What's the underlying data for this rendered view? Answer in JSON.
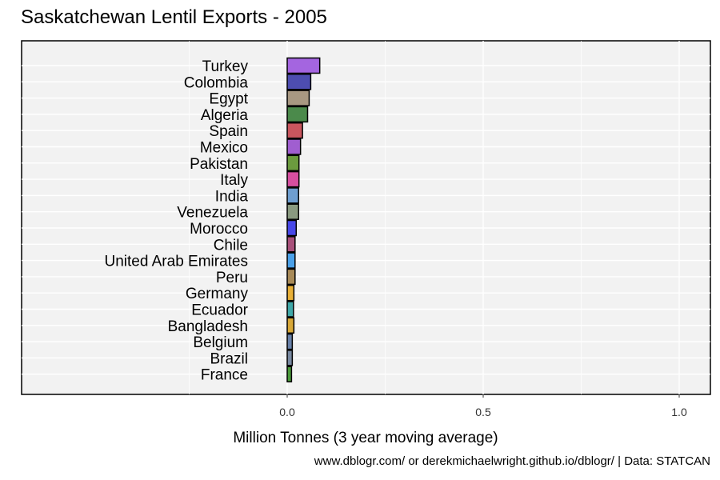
{
  "title": "Saskatchewan Lentil Exports - 2005",
  "caption": "www.dblogr.com/ or derekmichaelwright.github.io/dblogr/ | Data: STATCAN",
  "chart_data": {
    "type": "bar",
    "orientation": "horizontal",
    "title": "Saskatchewan Lentil Exports - 2005",
    "xlabel": "Million Tonnes (3 year moving average)",
    "ylabel": "",
    "xlim": [
      -0.5,
      1.08
    ],
    "xticks": [
      0.0,
      0.5,
      1.0
    ],
    "xtick_labels": [
      "0.0",
      "0.5",
      "1.0"
    ],
    "grid": true,
    "categories": [
      "Turkey",
      "Colombia",
      "Egypt",
      "Algeria",
      "Spain",
      "Mexico",
      "Pakistan",
      "Italy",
      "India",
      "Venezuela",
      "Morocco",
      "Chile",
      "United Arab Emirates",
      "Peru",
      "Germany",
      "Ecuador",
      "Bangladesh",
      "Belgium",
      "Brazil",
      "France"
    ],
    "values": [
      0.083,
      0.06,
      0.056,
      0.052,
      0.039,
      0.034,
      0.03,
      0.03,
      0.029,
      0.029,
      0.023,
      0.02,
      0.02,
      0.02,
      0.017,
      0.016,
      0.017,
      0.013,
      0.013,
      0.011
    ],
    "colors": [
      "#a465e0",
      "#4d4db0",
      "#a89882",
      "#4b8a4b",
      "#c9565e",
      "#a05ed0",
      "#6b9b3e",
      "#d64fa0",
      "#6e9ed0",
      "#8a9a80",
      "#4848e8",
      "#a8507a",
      "#4aa0e8",
      "#a88a58",
      "#e8b038",
      "#40a8a8",
      "#d8a838",
      "#6880a8",
      "#7888a0",
      "#4a9a3a"
    ]
  }
}
